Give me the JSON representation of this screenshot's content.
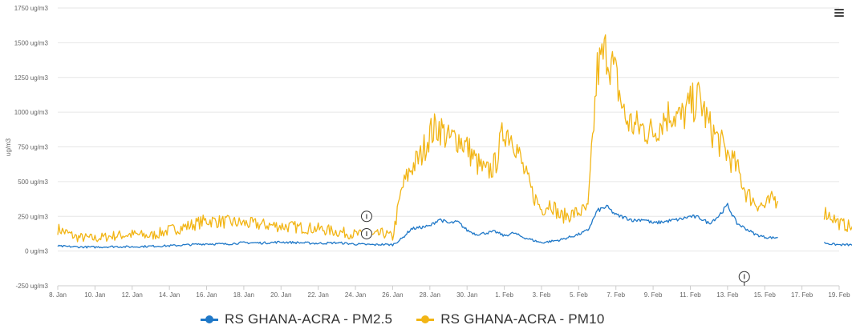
{
  "chart_data": {
    "type": "line",
    "title": "",
    "ylabel": "ug/m3",
    "ylim": [
      -250,
      1750
    ],
    "y_ticks": [
      {
        "value": -250,
        "label": "-250 ug/m3"
      },
      {
        "value": 0,
        "label": "0 ug/m3"
      },
      {
        "value": 250,
        "label": "250 ug/m3"
      },
      {
        "value": 500,
        "label": "500 ug/m3"
      },
      {
        "value": 750,
        "label": "750 ug/m3"
      },
      {
        "value": 1000,
        "label": "1000 ug/m3"
      },
      {
        "value": 1250,
        "label": "1250 ug/m3"
      },
      {
        "value": 1500,
        "label": "1500 ug/m3"
      },
      {
        "value": 1750,
        "label": "1750 ug/m3"
      }
    ],
    "x_range_days": [
      "8. Jan",
      "19. Feb"
    ],
    "x_ticks": [
      "8. Jan",
      "10. Jan",
      "12. Jan",
      "14. Jan",
      "16. Jan",
      "18. Jan",
      "20. Jan",
      "22. Jan",
      "24. Jan",
      "26. Jan",
      "28. Jan",
      "30. Jan",
      "1. Feb",
      "3. Feb",
      "5. Feb",
      "7. Feb",
      "9. Feb",
      "11. Feb",
      "13. Feb",
      "15. Feb",
      "17. Feb",
      "19. Feb"
    ],
    "grid": true,
    "legend_position": "bottom",
    "series": [
      {
        "name": "RS GHANA-ACRA - PM2.5",
        "color": "#1f78c8",
        "points": [
          [
            0,
            35
          ],
          [
            1,
            30
          ],
          [
            2,
            28
          ],
          [
            3,
            32
          ],
          [
            4,
            30
          ],
          [
            5,
            35
          ],
          [
            6,
            38
          ],
          [
            7,
            45
          ],
          [
            8,
            52
          ],
          [
            9,
            50
          ],
          [
            10,
            60
          ],
          [
            11,
            58
          ],
          [
            12,
            65
          ],
          [
            13,
            60
          ],
          [
            14,
            55
          ],
          [
            15,
            60
          ],
          [
            16,
            50
          ],
          [
            17,
            45
          ],
          [
            17.5,
            48
          ],
          [
            18,
            45
          ],
          [
            18.5,
            90
          ],
          [
            19,
            160
          ],
          [
            19.5,
            170
          ],
          [
            20,
            180
          ],
          [
            20.5,
            230
          ],
          [
            21,
            200
          ],
          [
            21.5,
            210
          ],
          [
            22,
            150
          ],
          [
            22.5,
            120
          ],
          [
            23,
            130
          ],
          [
            23.5,
            140
          ],
          [
            24,
            110
          ],
          [
            24.5,
            130
          ],
          [
            25,
            100
          ],
          [
            25.5,
            80
          ],
          [
            26,
            60
          ],
          [
            26.5,
            70
          ],
          [
            27,
            80
          ],
          [
            27.5,
            100
          ],
          [
            28,
            120
          ],
          [
            28.5,
            150
          ],
          [
            29,
            290
          ],
          [
            29.5,
            320
          ],
          [
            30,
            260
          ],
          [
            30.5,
            240
          ],
          [
            31,
            220
          ],
          [
            31.5,
            230
          ],
          [
            32,
            200
          ],
          [
            32.5,
            210
          ],
          [
            33,
            220
          ],
          [
            33.5,
            230
          ],
          [
            34,
            250
          ],
          [
            34.5,
            240
          ],
          [
            35,
            200
          ],
          [
            35.5,
            250
          ],
          [
            36,
            330
          ],
          [
            36.5,
            200
          ],
          [
            37,
            160
          ],
          [
            37.5,
            120
          ],
          [
            38,
            100
          ],
          [
            38.5,
            95
          ],
          [
            38.7,
            100
          ]
        ],
        "points_after_gap": [
          [
            41.2,
            60
          ],
          [
            41.6,
            50
          ],
          [
            42,
            45
          ],
          [
            42.5,
            45
          ],
          [
            43,
            40
          ],
          [
            43.5,
            40
          ],
          [
            44,
            38
          ],
          [
            44.5,
            35
          ],
          [
            45,
            40
          ],
          [
            45.5,
            30
          ],
          [
            46,
            28
          ],
          [
            46.5,
            25
          ],
          [
            47,
            30
          ],
          [
            47.5,
            32
          ],
          [
            48,
            28
          ]
        ]
      },
      {
        "name": "RS GHANA-ACRA - PM10",
        "color": "#f2b515",
        "points": [
          [
            0,
            160
          ],
          [
            1,
            100
          ],
          [
            2,
            90
          ],
          [
            3,
            110
          ],
          [
            4,
            120
          ],
          [
            5,
            110
          ],
          [
            6,
            150
          ],
          [
            7,
            180
          ],
          [
            8,
            220
          ],
          [
            9,
            210
          ],
          [
            10,
            200
          ],
          [
            11,
            190
          ],
          [
            12,
            180
          ],
          [
            13,
            170
          ],
          [
            14,
            160
          ],
          [
            15,
            140
          ],
          [
            16,
            120
          ],
          [
            17,
            110
          ],
          [
            17.5,
            130
          ],
          [
            18,
            100
          ],
          [
            18.5,
            450
          ],
          [
            19,
            600
          ],
          [
            19.5,
            680
          ],
          [
            20,
            850
          ],
          [
            20.5,
            900
          ],
          [
            21,
            800
          ],
          [
            21.5,
            820
          ],
          [
            22,
            750
          ],
          [
            22.5,
            640
          ],
          [
            23,
            560
          ],
          [
            23.5,
            620
          ],
          [
            24,
            880
          ],
          [
            24.5,
            820
          ],
          [
            25,
            600
          ],
          [
            25.5,
            420
          ],
          [
            26,
            300
          ],
          [
            26.5,
            350
          ],
          [
            27,
            250
          ],
          [
            27.5,
            260
          ],
          [
            28,
            280
          ],
          [
            28.5,
            300
          ],
          [
            29,
            1300
          ],
          [
            29.5,
            1450
          ],
          [
            30,
            1250
          ],
          [
            30.5,
            950
          ],
          [
            31,
            900
          ],
          [
            31.5,
            880
          ],
          [
            32,
            850
          ],
          [
            32.5,
            950
          ],
          [
            33,
            1000
          ],
          [
            33.5,
            950
          ],
          [
            34,
            1050
          ],
          [
            34.5,
            1100
          ],
          [
            35,
            900
          ],
          [
            35.5,
            800
          ],
          [
            36,
            700
          ],
          [
            36.5,
            600
          ],
          [
            37,
            420
          ],
          [
            37.5,
            350
          ],
          [
            38,
            320
          ],
          [
            38.5,
            380
          ],
          [
            38.7,
            360
          ]
        ],
        "points_after_gap": [
          [
            41.2,
            280
          ],
          [
            41.6,
            250
          ],
          [
            42,
            200
          ],
          [
            42.5,
            180
          ],
          [
            43,
            150
          ],
          [
            43.5,
            140
          ],
          [
            44,
            130
          ],
          [
            44.5,
            120
          ],
          [
            45,
            110
          ],
          [
            45.5,
            100
          ],
          [
            46,
            90
          ],
          [
            46.5,
            85
          ],
          [
            47,
            80
          ],
          [
            47.5,
            70
          ],
          [
            48,
            60
          ]
        ]
      }
    ],
    "annotations": [
      {
        "label": "I",
        "series": "RS GHANA-ACRA - PM10",
        "x_day": 16.6,
        "value": 250
      },
      {
        "label": "I",
        "series": "RS GHANA-ACRA - PM2.5",
        "x_day": 16.6,
        "value": 125
      },
      {
        "label": "I",
        "series": "x-axis",
        "x_day": 36.9,
        "value": -185
      }
    ]
  },
  "menu_icon": "hamburger-menu-icon"
}
